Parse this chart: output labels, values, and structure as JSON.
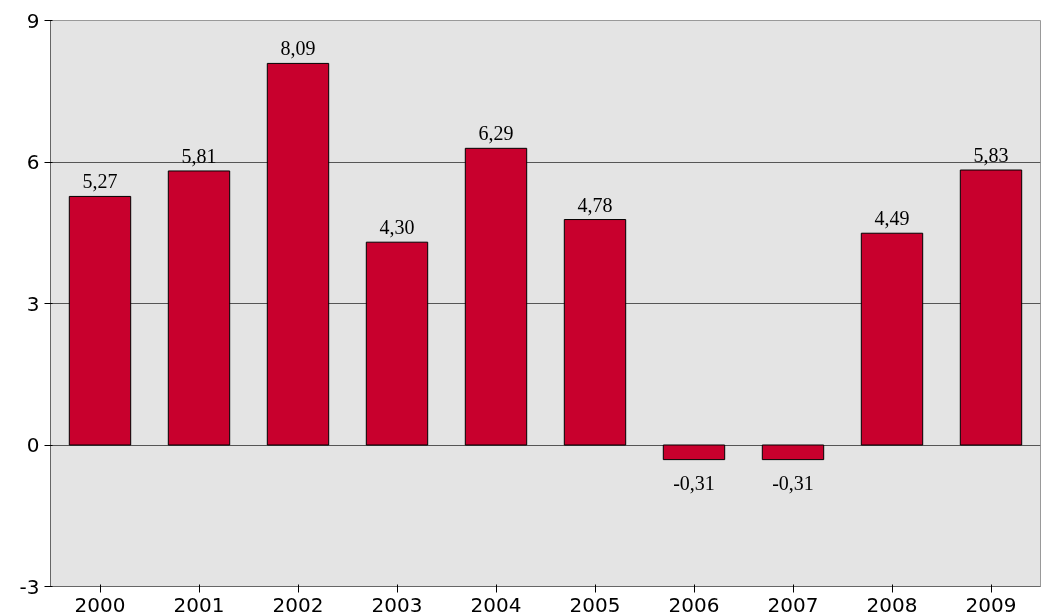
{
  "chart_data": {
    "type": "bar",
    "categories": [
      "2000",
      "2001",
      "2002",
      "2003",
      "2004",
      "2005",
      "2006",
      "2007",
      "2008",
      "2009"
    ],
    "series": [
      {
        "color": "#c8002d",
        "values": [
          5.27,
          5.81,
          8.09,
          4.3,
          6.29,
          4.78,
          -0.31,
          -0.31,
          4.49,
          5.83
        ],
        "value_labels": [
          "5,27",
          "5,81",
          "8,09",
          "4,30",
          "6,29",
          "4,78",
          "-0,31",
          "-0,31",
          "4,49",
          "5,83"
        ]
      }
    ],
    "ylim": [
      -3,
      9
    ],
    "yticks": [
      -3,
      0,
      3,
      6,
      9
    ],
    "grid": "y"
  }
}
